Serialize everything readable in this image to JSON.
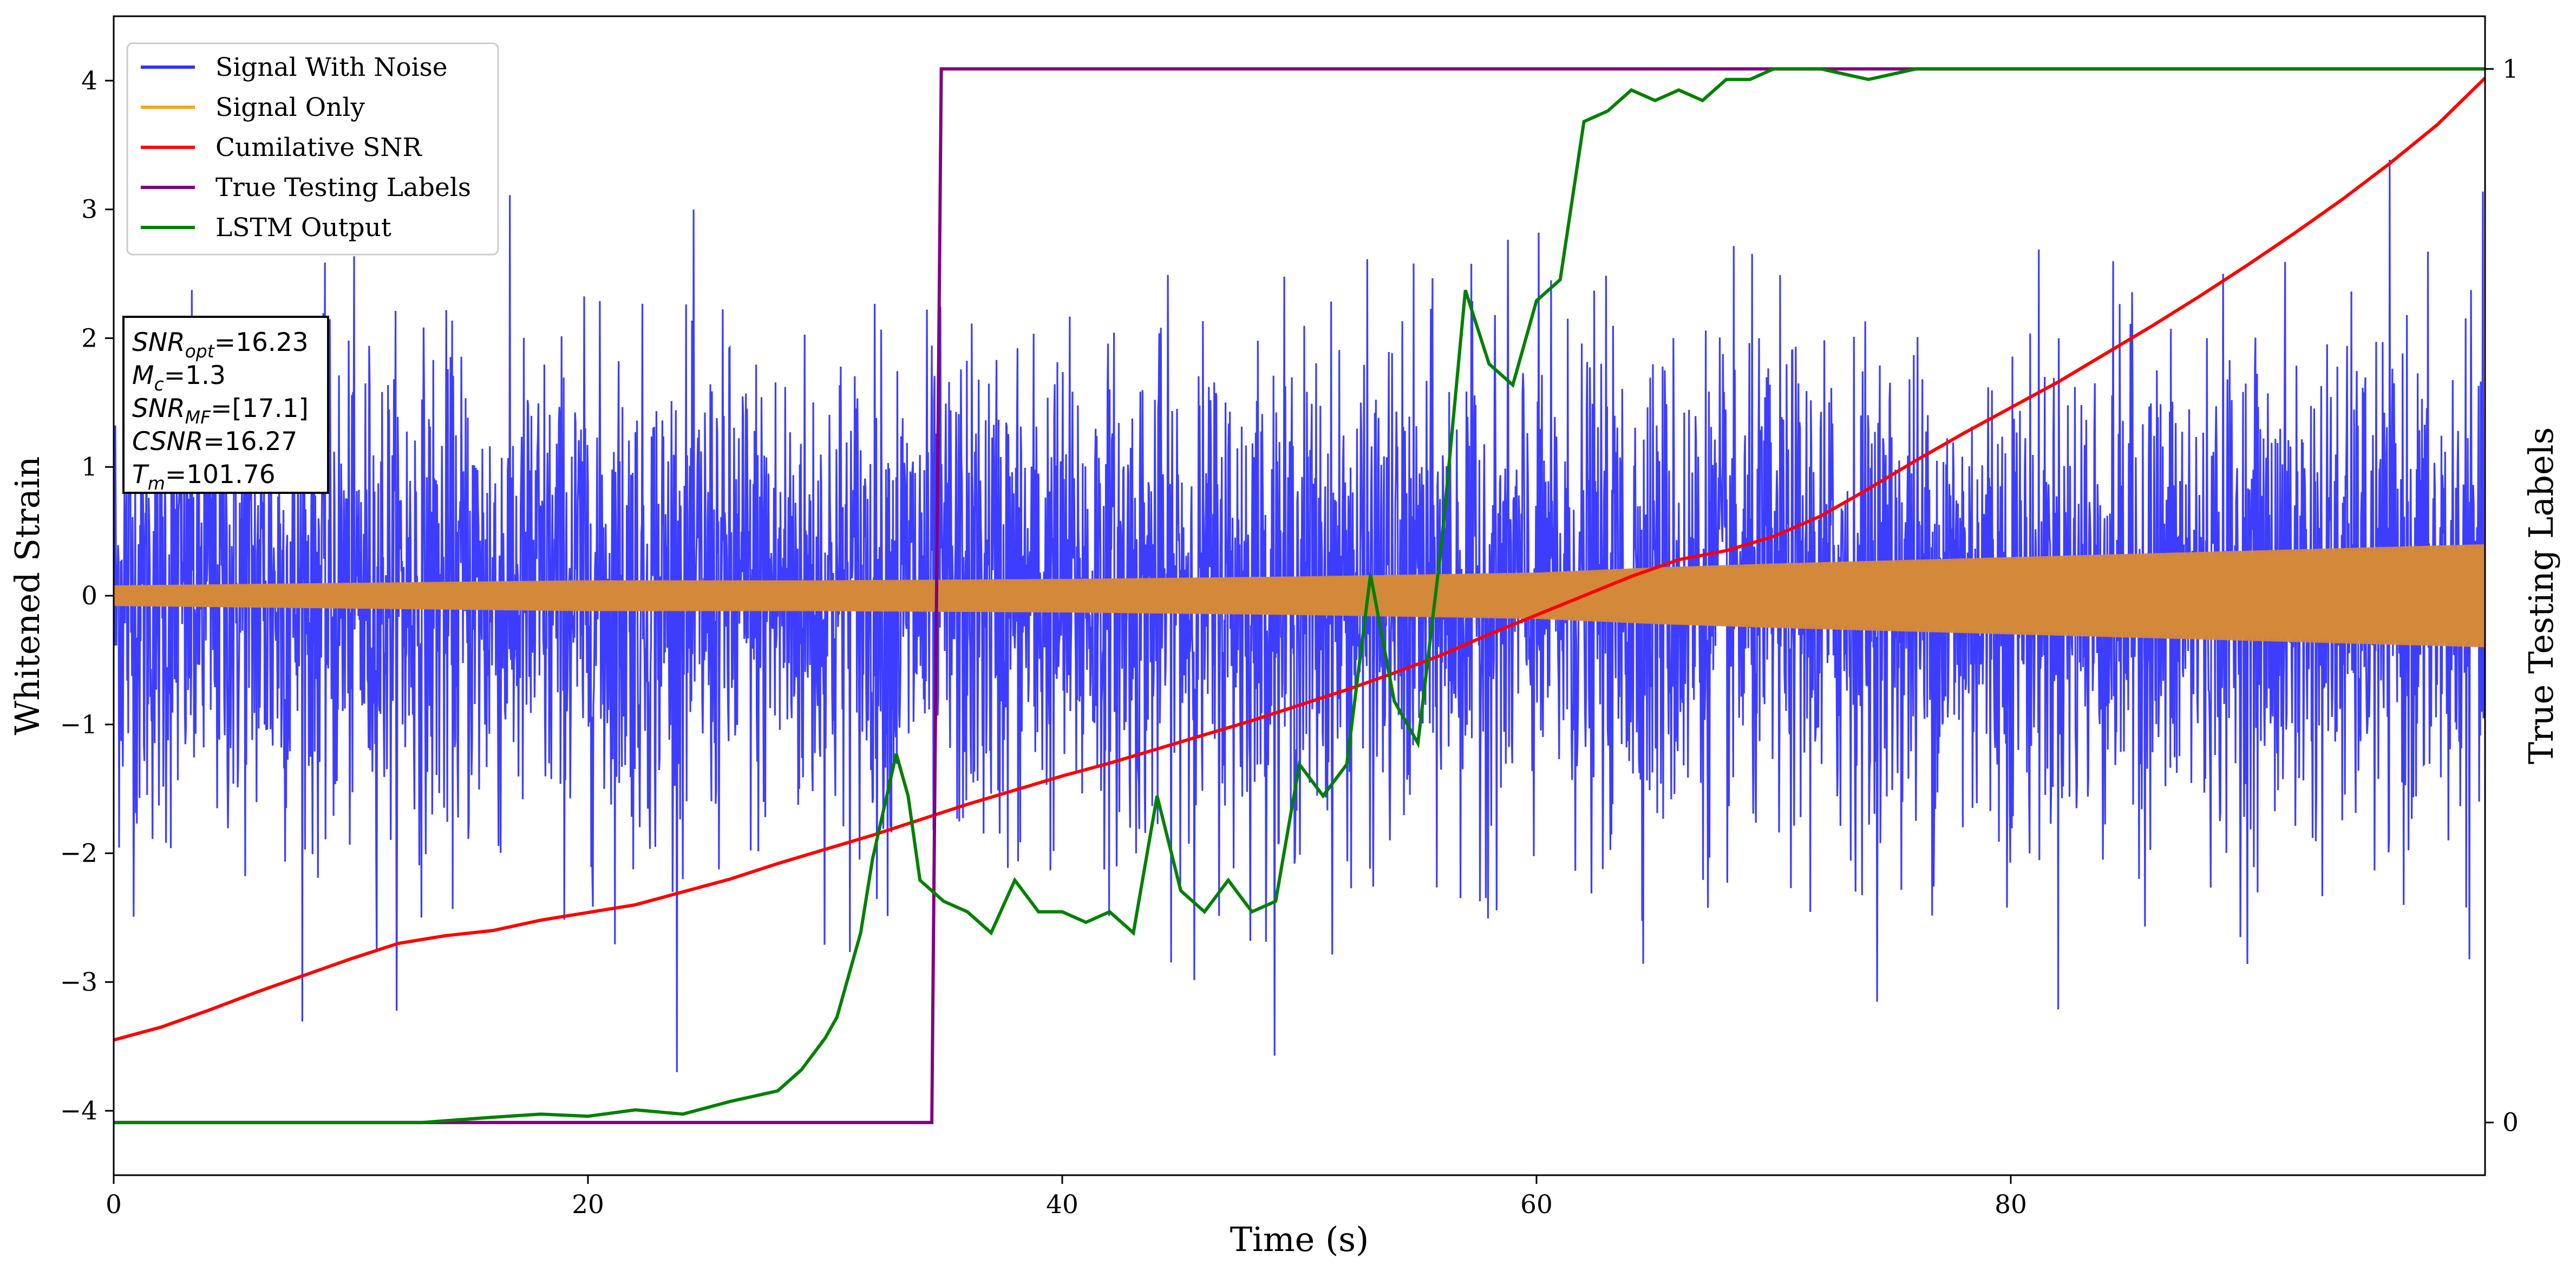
{
  "chart_data": {
    "type": "line",
    "xlabel": "Time (s)",
    "ylabel": "Whitened Strain",
    "y2label": "True Testing Labels",
    "xlim": [
      0,
      100
    ],
    "ylim": [
      -4.5,
      4.5
    ],
    "y2lim": [
      -0.05,
      1.05
    ],
    "xticks": [
      0,
      20,
      40,
      60,
      80
    ],
    "yticks": [
      -4,
      -3,
      -2,
      -1,
      0,
      1,
      2,
      3,
      4
    ],
    "y2ticks": [
      0,
      1
    ],
    "xtick_labels": [
      "0",
      "20",
      "40",
      "60",
      "80"
    ],
    "ytick_labels": [
      "−4",
      "−3",
      "−2",
      "−1",
      "0",
      "1",
      "2",
      "3",
      "4"
    ],
    "y2tick_labels": [
      "0",
      "1"
    ],
    "grid": false,
    "legend_position": "top-left",
    "series": [
      {
        "name": "Signal With Noise",
        "color": "#3333ff",
        "axis": "left",
        "description_values": {
          "typical_band": [
            -1.2,
            1.2
          ],
          "max_spikes": [
            3.8,
            4.1
          ],
          "min_spikes": [
            -3.7,
            -3.3
          ]
        }
      },
      {
        "name": "Signal Only",
        "color": "#f5a623",
        "axis": "left",
        "envelope": {
          "x": [
            0,
            10,
            20,
            30,
            40,
            50,
            60,
            65,
            70,
            80,
            90,
            100
          ],
          "amplitude": [
            0.08,
            0.1,
            0.12,
            0.12,
            0.13,
            0.15,
            0.18,
            0.22,
            0.25,
            0.3,
            0.35,
            0.4
          ]
        }
      },
      {
        "name": "Cumilative SNR",
        "color": "#ff0000",
        "axis": "left",
        "x": [
          0,
          2,
          4,
          6,
          8,
          10,
          12,
          14,
          16,
          18,
          20,
          22,
          24,
          26,
          28,
          30,
          32,
          34,
          36,
          38,
          40,
          42,
          44,
          46,
          48,
          50,
          52,
          54,
          56,
          58,
          60,
          62,
          64,
          66,
          68,
          70,
          72,
          74,
          76,
          78,
          80,
          82,
          84,
          86,
          88,
          90,
          92,
          94,
          96,
          98,
          100
        ],
        "y": [
          -3.45,
          -3.35,
          -3.22,
          -3.08,
          -2.95,
          -2.82,
          -2.7,
          -2.64,
          -2.6,
          -2.52,
          -2.46,
          -2.4,
          -2.3,
          -2.2,
          -2.08,
          -1.97,
          -1.86,
          -1.74,
          -1.62,
          -1.51,
          -1.4,
          -1.3,
          -1.19,
          -1.08,
          -0.97,
          -0.85,
          -0.73,
          -0.6,
          -0.46,
          -0.3,
          -0.15,
          0.0,
          0.15,
          0.28,
          0.35,
          0.46,
          0.62,
          0.83,
          1.05,
          1.26,
          1.46,
          1.66,
          1.88,
          2.1,
          2.33,
          2.57,
          2.82,
          3.08,
          3.36,
          3.66,
          4.02
        ]
      },
      {
        "name": "True Testing Labels",
        "color": "#800080",
        "axis": "right",
        "x": [
          0,
          34.5,
          34.9,
          100
        ],
        "y": [
          0,
          0,
          1,
          1
        ]
      },
      {
        "name": "LSTM Output",
        "color": "#008000",
        "axis": "right",
        "x": [
          0,
          13,
          16,
          18,
          20,
          22,
          24,
          26,
          28,
          29,
          30,
          30.5,
          31,
          31.5,
          32,
          32.5,
          33,
          33.5,
          34,
          35,
          36,
          37,
          38,
          39,
          40,
          41,
          42,
          43,
          44,
          45,
          46,
          47,
          48,
          49,
          50,
          51,
          52,
          53,
          54,
          55,
          56,
          57,
          58,
          59,
          60,
          61,
          62,
          63,
          64,
          65,
          66,
          67,
          68,
          69,
          70,
          72,
          74,
          76,
          78,
          80,
          82,
          84,
          86,
          88,
          90,
          92,
          94,
          96,
          98,
          100
        ],
        "y": [
          0.0,
          0.0,
          0.005,
          0.008,
          0.006,
          0.012,
          0.008,
          0.02,
          0.03,
          0.05,
          0.08,
          0.1,
          0.14,
          0.18,
          0.25,
          0.3,
          0.35,
          0.31,
          0.23,
          0.21,
          0.2,
          0.18,
          0.23,
          0.2,
          0.2,
          0.19,
          0.2,
          0.18,
          0.31,
          0.22,
          0.2,
          0.23,
          0.2,
          0.21,
          0.34,
          0.31,
          0.34,
          0.52,
          0.4,
          0.36,
          0.55,
          0.79,
          0.72,
          0.7,
          0.78,
          0.8,
          0.95,
          0.96,
          0.98,
          0.97,
          0.98,
          0.97,
          0.99,
          0.99,
          1.0,
          1.0,
          0.99,
          1.0,
          1.0,
          1.0,
          1.0,
          1.0,
          1.0,
          1.0,
          1.0,
          1.0,
          1.0,
          1.0,
          1.0,
          1.0
        ]
      }
    ],
    "info_box": {
      "lines": [
        {
          "main": "SNR",
          "sub": "opt",
          "value": "=16.23"
        },
        {
          "main": "M",
          "sub": "c",
          "value": "=1.3"
        },
        {
          "main": "SNR",
          "sub": "MF",
          "value": "=[17.1]"
        },
        {
          "main": "CSNR",
          "sub": "",
          "value": "=16.27"
        },
        {
          "main": "T",
          "sub": "m",
          "value": "=101.76"
        }
      ]
    }
  }
}
